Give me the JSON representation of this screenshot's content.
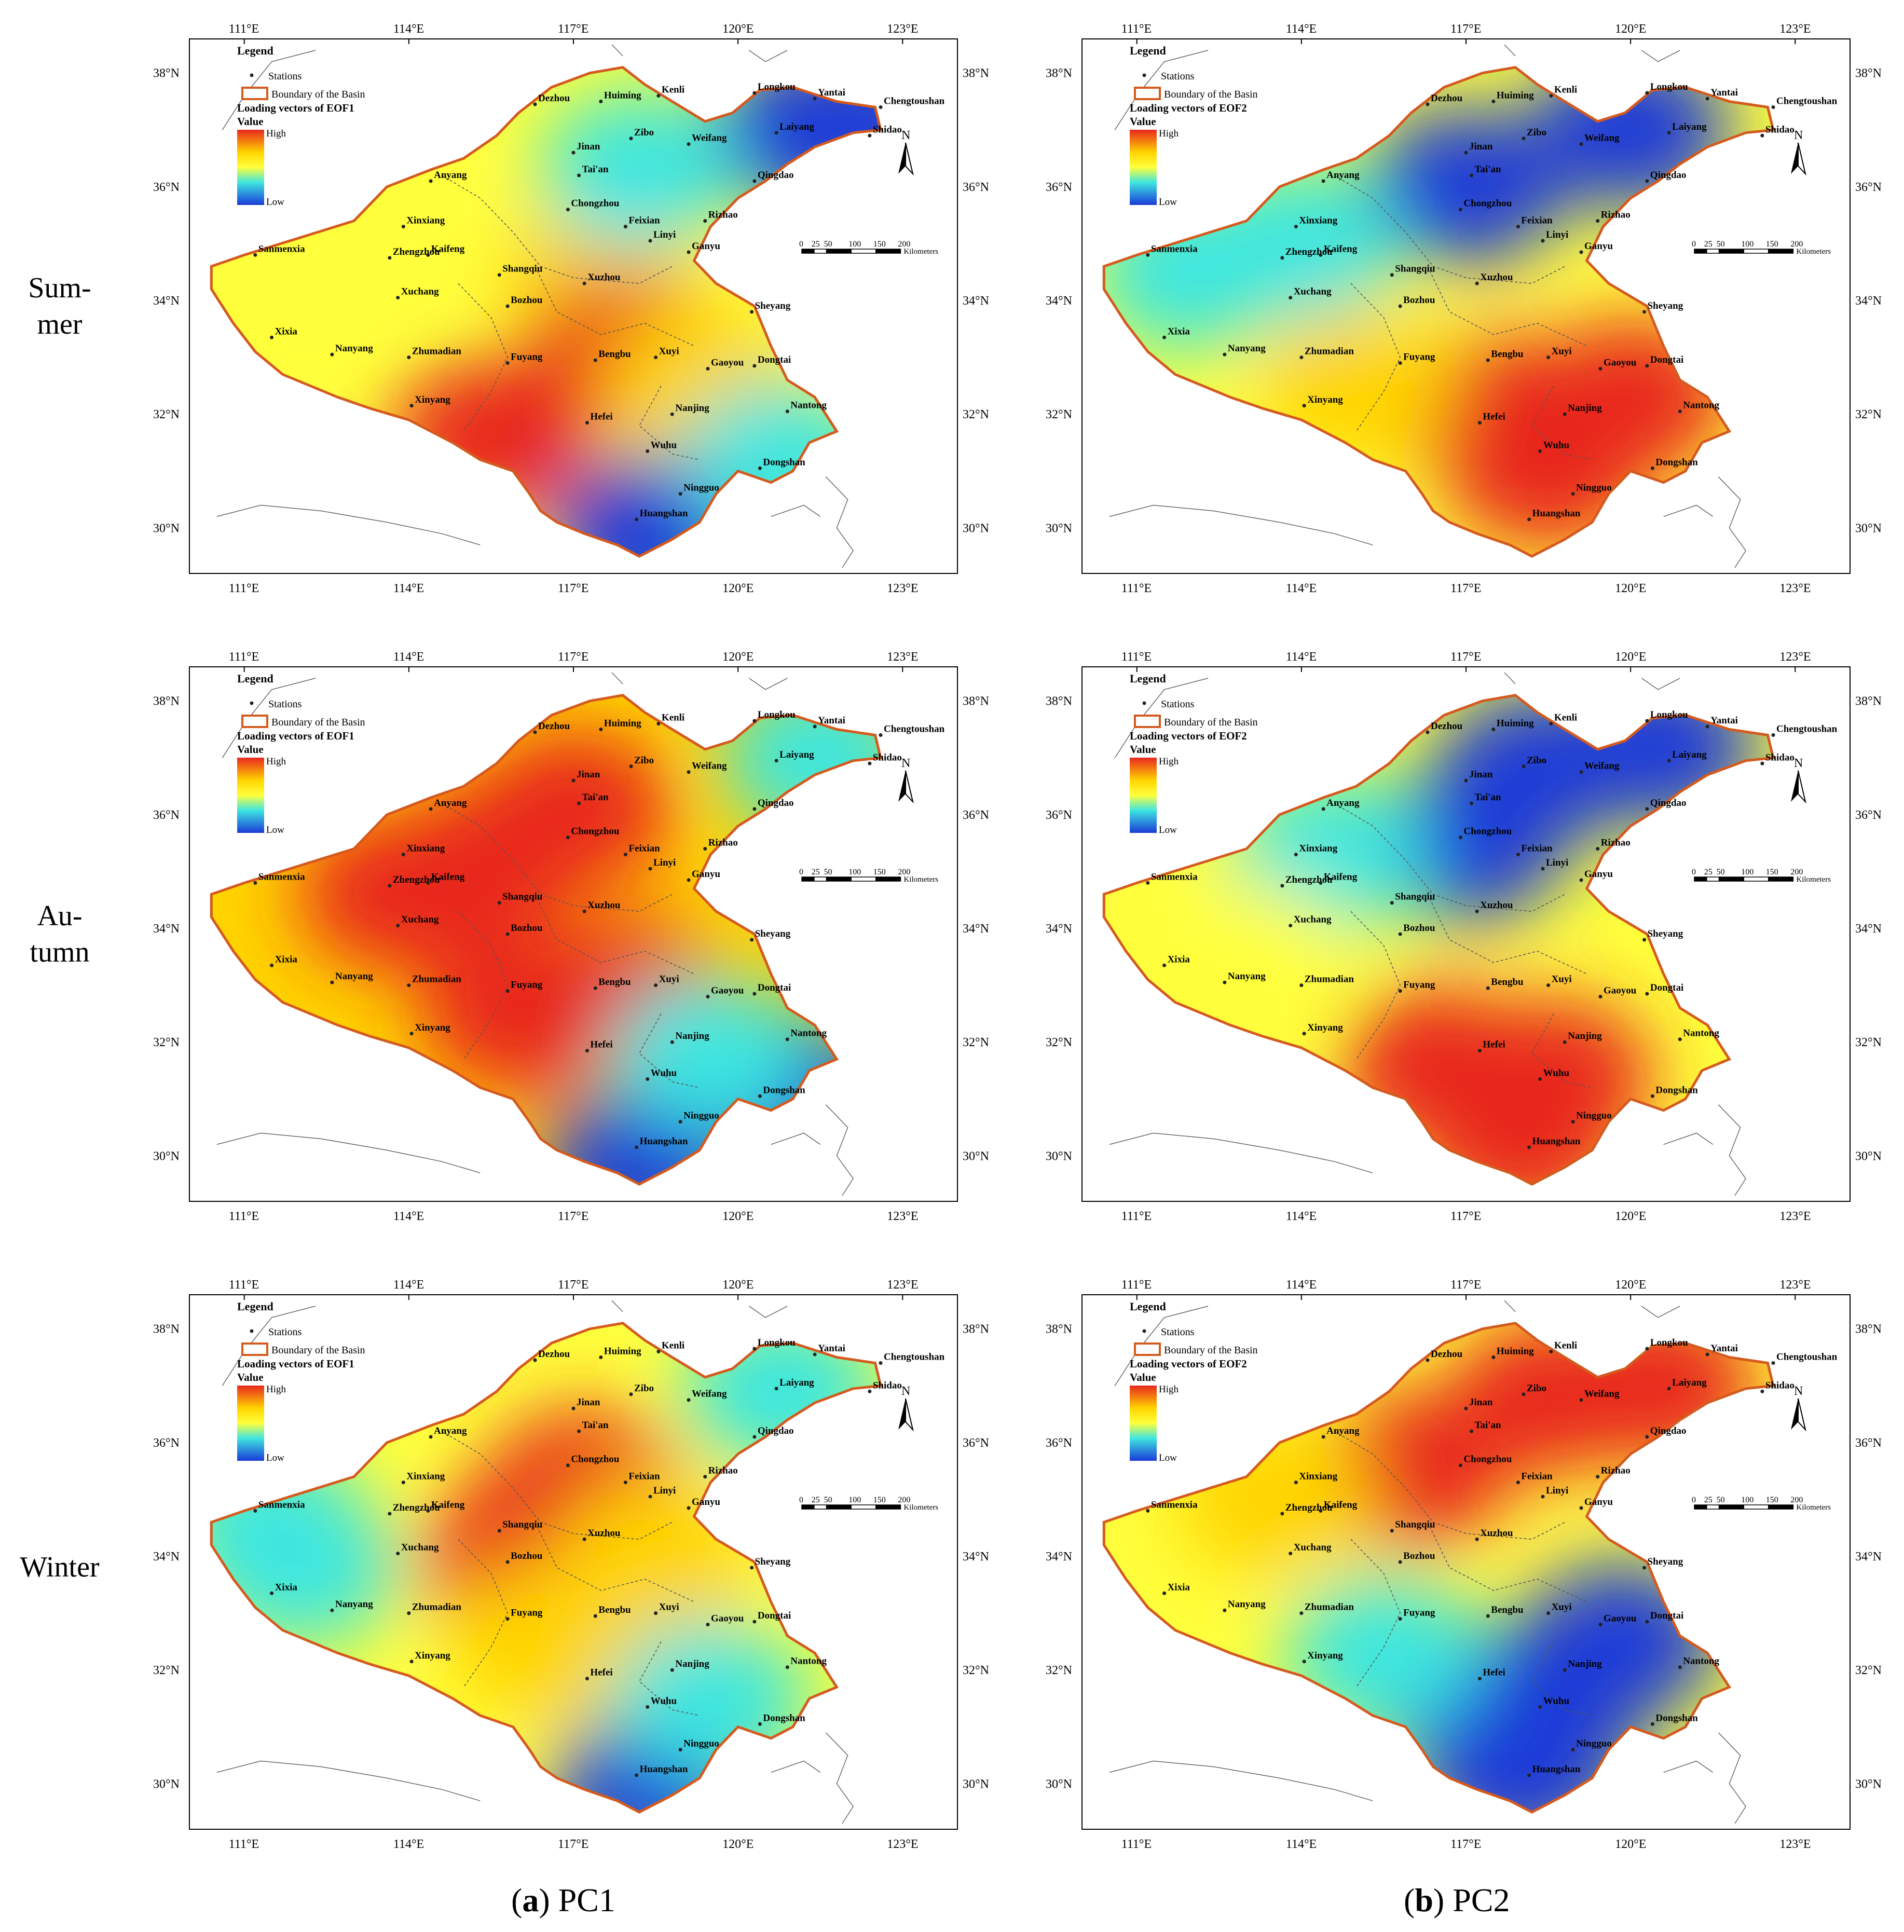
{
  "row_labels": [
    {
      "line1": "Sum-",
      "line2": "mer"
    },
    {
      "line1": "Au-",
      "line2": "tumn"
    },
    {
      "line1": "Winter",
      "line2": ""
    }
  ],
  "captions": [
    {
      "letter": "a",
      "text": ") PC1",
      "open": "("
    },
    {
      "letter": "b",
      "text": ") PC2",
      "open": "("
    }
  ],
  "lon_labels": [
    "111°E",
    "114°E",
    "117°E",
    "120°E",
    "123°E"
  ],
  "lat_labels": [
    "38°N",
    "36°N",
    "34°N",
    "32°N",
    "30°N"
  ],
  "legend": {
    "title": "Legend",
    "stations": "Stations",
    "boundary": "Boundary of the Basin",
    "value": "Value",
    "high": "High",
    "low": "Low",
    "eof_titles": [
      "Loading vectors of EOF1",
      "Loading vectors of EOF2"
    ]
  },
  "north_arrow": "N",
  "scale_bar": {
    "ticks": [
      "0",
      "25",
      "50",
      "100",
      "150",
      "200"
    ],
    "unit": "Kilometers"
  },
  "colors": {
    "high": "#e8281e",
    "mid_high": "#ffd400",
    "mid": "#ffff3c",
    "mid_low": "#3ee6e0",
    "low": "#1a3ad8",
    "boundary": "#d45a1e"
  },
  "stations": [
    {
      "name": "Dezhou",
      "lon": 116.3,
      "lat": 37.45
    },
    {
      "name": "Huiming",
      "lon": 117.5,
      "lat": 37.5
    },
    {
      "name": "Kenli",
      "lon": 118.55,
      "lat": 37.6
    },
    {
      "name": "Longkou",
      "lon": 120.3,
      "lat": 37.65
    },
    {
      "name": "Yantai",
      "lon": 121.4,
      "lat": 37.55
    },
    {
      "name": "Chengtoushan",
      "lon": 122.6,
      "lat": 37.4
    },
    {
      "name": "Weifang",
      "lon": 119.1,
      "lat": 36.75
    },
    {
      "name": "Laiyang",
      "lon": 120.7,
      "lat": 36.95
    },
    {
      "name": "Shidao",
      "lon": 122.4,
      "lat": 36.9
    },
    {
      "name": "Zibo",
      "lon": 118.05,
      "lat": 36.85
    },
    {
      "name": "Jinan",
      "lon": 117.0,
      "lat": 36.6
    },
    {
      "name": "Tai'an",
      "lon": 117.1,
      "lat": 36.2
    },
    {
      "name": "Qingdao",
      "lon": 120.3,
      "lat": 36.1
    },
    {
      "name": "Anyang",
      "lon": 114.4,
      "lat": 36.1
    },
    {
      "name": "Chongzhou",
      "lon": 116.9,
      "lat": 35.6
    },
    {
      "name": "Rizhao",
      "lon": 119.4,
      "lat": 35.4
    },
    {
      "name": "Xinxiang",
      "lon": 113.9,
      "lat": 35.3
    },
    {
      "name": "Feixian",
      "lon": 117.95,
      "lat": 35.3
    },
    {
      "name": "Linyi",
      "lon": 118.4,
      "lat": 35.05
    },
    {
      "name": "Ganyu",
      "lon": 119.1,
      "lat": 34.85
    },
    {
      "name": "Sanmenxia",
      "lon": 111.2,
      "lat": 34.8
    },
    {
      "name": "Zhengzhou",
      "lon": 113.65,
      "lat": 34.75
    },
    {
      "name": "Kaifeng",
      "lon": 114.35,
      "lat": 34.8
    },
    {
      "name": "Shangqiu",
      "lon": 115.65,
      "lat": 34.45
    },
    {
      "name": "Xuzhou",
      "lon": 117.2,
      "lat": 34.3
    },
    {
      "name": "Xuchang",
      "lon": 113.8,
      "lat": 34.05
    },
    {
      "name": "Bozhou",
      "lon": 115.8,
      "lat": 33.9
    },
    {
      "name": "Sheyang",
      "lon": 120.25,
      "lat": 33.8
    },
    {
      "name": "Xixia",
      "lon": 111.5,
      "lat": 33.35
    },
    {
      "name": "Nanyang",
      "lon": 112.6,
      "lat": 33.05
    },
    {
      "name": "Zhumadian",
      "lon": 114.0,
      "lat": 33.0
    },
    {
      "name": "Fuyang",
      "lon": 115.8,
      "lat": 32.9
    },
    {
      "name": "Bengbu",
      "lon": 117.4,
      "lat": 32.95
    },
    {
      "name": "Xuyi",
      "lon": 118.5,
      "lat": 33.0
    },
    {
      "name": "Gaoyou",
      "lon": 119.45,
      "lat": 32.8
    },
    {
      "name": "Dongtai",
      "lon": 120.3,
      "lat": 32.85
    },
    {
      "name": "Xinyang",
      "lon": 114.05,
      "lat": 32.15
    },
    {
      "name": "Nanjing",
      "lon": 118.8,
      "lat": 32.0
    },
    {
      "name": "Hefei",
      "lon": 117.25,
      "lat": 31.85
    },
    {
      "name": "Nantong",
      "lon": 120.9,
      "lat": 32.05
    },
    {
      "name": "Wuhu",
      "lon": 118.35,
      "lat": 31.35
    },
    {
      "name": "Dongshan",
      "lon": 120.4,
      "lat": 31.05
    },
    {
      "name": "Ningguo",
      "lon": 118.95,
      "lat": 30.6
    },
    {
      "name": "Huangshan",
      "lon": 118.15,
      "lat": 30.15
    }
  ],
  "panels": [
    {
      "row": 0,
      "col": 0,
      "eof": 0,
      "blobs": [
        {
          "lon": 117.5,
          "lat": 34.5,
          "level": "mid_high"
        },
        {
          "lon": 115.5,
          "lat": 31.6,
          "level": "high"
        },
        {
          "lon": 117.9,
          "lat": 33.0,
          "level": "high"
        },
        {
          "lon": 119.3,
          "lat": 32.5,
          "level": "mid_high"
        },
        {
          "lon": 121.3,
          "lat": 37.0,
          "level": "low"
        },
        {
          "lon": 122.3,
          "lat": 37.1,
          "level": "low"
        },
        {
          "lon": 118.4,
          "lat": 29.9,
          "level": "low"
        },
        {
          "lon": 120.8,
          "lat": 31.2,
          "level": "mid_low"
        },
        {
          "lon": 118.2,
          "lat": 36.3,
          "level": "mid_low"
        },
        {
          "lon": 113.0,
          "lat": 35.3,
          "level": "mid"
        }
      ],
      "base": "mid"
    },
    {
      "row": 0,
      "col": 1,
      "eof": 1,
      "blobs": [
        {
          "lon": 117.0,
          "lat": 36.0,
          "level": "low"
        },
        {
          "lon": 120.0,
          "lat": 37.0,
          "level": "low"
        },
        {
          "lon": 114.0,
          "lat": 35.0,
          "level": "mid_low"
        },
        {
          "lon": 112.0,
          "lat": 34.5,
          "level": "mid_low"
        },
        {
          "lon": 118.5,
          "lat": 31.0,
          "level": "high"
        },
        {
          "lon": 117.5,
          "lat": 32.0,
          "level": "high"
        },
        {
          "lon": 120.0,
          "lat": 32.3,
          "level": "high"
        },
        {
          "lon": 115.0,
          "lat": 32.5,
          "level": "mid_high"
        }
      ],
      "base": "mid"
    },
    {
      "row": 1,
      "col": 0,
      "eof": 0,
      "blobs": [
        {
          "lon": 113.8,
          "lat": 34.6,
          "level": "high"
        },
        {
          "lon": 117.0,
          "lat": 36.1,
          "level": "high"
        },
        {
          "lon": 115.5,
          "lat": 35.2,
          "level": "high"
        },
        {
          "lon": 118.0,
          "lat": 32.8,
          "level": "high"
        },
        {
          "lon": 116.0,
          "lat": 32.5,
          "level": "high"
        },
        {
          "lon": 120.8,
          "lat": 31.2,
          "level": "low"
        },
        {
          "lon": 118.3,
          "lat": 29.9,
          "level": "low"
        },
        {
          "lon": 121.5,
          "lat": 37.0,
          "level": "mid_low"
        },
        {
          "lon": 119.5,
          "lat": 31.8,
          "level": "mid_low"
        }
      ],
      "base": "mid_high"
    },
    {
      "row": 1,
      "col": 1,
      "eof": 1,
      "blobs": [
        {
          "lon": 118.3,
          "lat": 36.8,
          "level": "low"
        },
        {
          "lon": 120.5,
          "lat": 37.2,
          "level": "low"
        },
        {
          "lon": 117.0,
          "lat": 35.5,
          "level": "low"
        },
        {
          "lon": 114.5,
          "lat": 35.3,
          "level": "mid_low"
        },
        {
          "lon": 118.6,
          "lat": 31.4,
          "level": "high"
        },
        {
          "lon": 116.5,
          "lat": 31.6,
          "level": "high"
        },
        {
          "lon": 118.0,
          "lat": 30.3,
          "level": "high"
        },
        {
          "lon": 113.0,
          "lat": 33.5,
          "level": "mid"
        }
      ],
      "base": "mid"
    },
    {
      "row": 2,
      "col": 0,
      "eof": 0,
      "blobs": [
        {
          "lon": 117.2,
          "lat": 35.2,
          "level": "high"
        },
        {
          "lon": 116.0,
          "lat": 34.0,
          "level": "high"
        },
        {
          "lon": 118.5,
          "lat": 34.0,
          "level": "mid_high"
        },
        {
          "lon": 116.5,
          "lat": 32.5,
          "level": "mid_high"
        },
        {
          "lon": 112.0,
          "lat": 33.8,
          "level": "mid_low"
        },
        {
          "lon": 111.5,
          "lat": 34.5,
          "level": "mid_low"
        },
        {
          "lon": 118.4,
          "lat": 29.9,
          "level": "low"
        },
        {
          "lon": 119.5,
          "lat": 31.5,
          "level": "mid_low"
        },
        {
          "lon": 120.8,
          "lat": 36.9,
          "level": "mid_low"
        }
      ],
      "base": "mid"
    },
    {
      "row": 2,
      "col": 1,
      "eof": 1,
      "blobs": [
        {
          "lon": 118.5,
          "lat": 36.8,
          "level": "high"
        },
        {
          "lon": 120.5,
          "lat": 37.0,
          "level": "high"
        },
        {
          "lon": 116.0,
          "lat": 35.5,
          "level": "high"
        },
        {
          "lon": 113.5,
          "lat": 35.0,
          "level": "mid_high"
        },
        {
          "lon": 118.5,
          "lat": 31.3,
          "level": "low"
        },
        {
          "lon": 117.0,
          "lat": 31.5,
          "level": "low"
        },
        {
          "lon": 119.8,
          "lat": 32.5,
          "level": "low"
        },
        {
          "lon": 118.0,
          "lat": 30.2,
          "level": "low"
        },
        {
          "lon": 115.5,
          "lat": 32.3,
          "level": "mid_low"
        }
      ],
      "base": "mid"
    }
  ]
}
